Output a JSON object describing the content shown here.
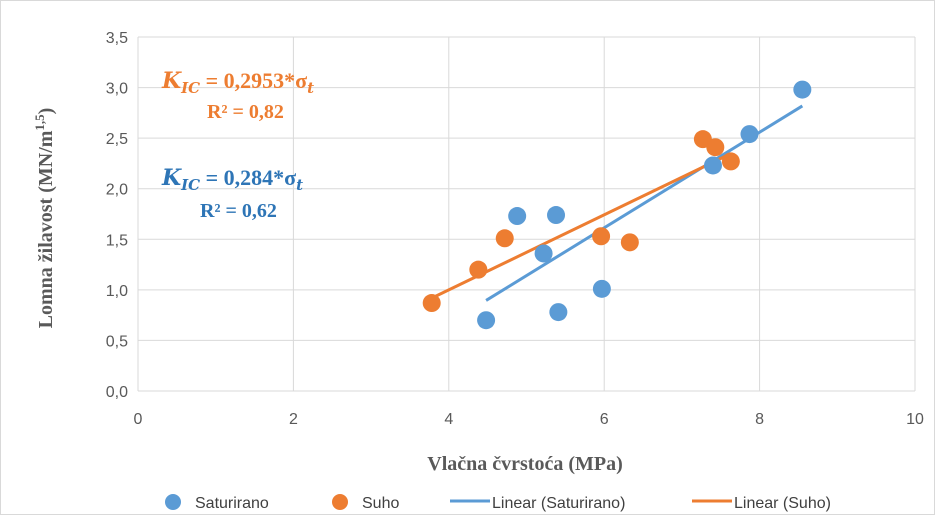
{
  "chart_data": {
    "type": "scatter",
    "xlabel": "Vlačna čvrstoća (MPa)",
    "ylabel_main": "Lomna žilavost (MN/m",
    "ylabel_sup": "1,5",
    "ylabel_end": ")",
    "xlim": [
      0,
      10
    ],
    "ylim": [
      0,
      3.5
    ],
    "x_ticks": [
      0,
      2,
      4,
      6,
      8,
      10
    ],
    "x_tick_labels": [
      "0",
      "2",
      "4",
      "6",
      "8",
      "10"
    ],
    "y_ticks": [
      0,
      0.5,
      1,
      1.5,
      2,
      2.5,
      3,
      3.5
    ],
    "y_tick_labels": [
      "0,0",
      "0,5",
      "1,0",
      "1,5",
      "2,0",
      "2,5",
      "3,0",
      "3,5"
    ],
    "grid": true,
    "legend_position": "bottom",
    "series": [
      {
        "name": "Saturirano",
        "color": "#5B9BD5",
        "points": [
          [
            4.48,
            0.7
          ],
          [
            4.88,
            1.73
          ],
          [
            5.22,
            1.36
          ],
          [
            5.38,
            1.74
          ],
          [
            5.41,
            0.78
          ],
          [
            5.97,
            1.01
          ],
          [
            7.4,
            2.23
          ],
          [
            7.87,
            2.54
          ],
          [
            8.55,
            2.98
          ]
        ]
      },
      {
        "name": "Suho",
        "color": "#ED7D31",
        "points": [
          [
            3.78,
            0.87
          ],
          [
            4.38,
            1.2
          ],
          [
            4.72,
            1.51
          ],
          [
            5.96,
            1.53
          ],
          [
            6.33,
            1.47
          ],
          [
            7.27,
            2.49
          ],
          [
            7.43,
            2.41
          ],
          [
            7.63,
            2.27
          ]
        ]
      }
    ],
    "trendlines": [
      {
        "name": "Linear (Saturirano)",
        "color": "#5B9BD5",
        "x": [
          4.48,
          8.55
        ]
      },
      {
        "name": "Linear (Suho)",
        "color": "#ED7D31",
        "x": [
          3.78,
          7.63
        ]
      }
    ],
    "annotations": [
      {
        "color": "#ED7D31",
        "equation_symbol": "K",
        "equation_subscript": "IC",
        "equation_rhs": " = 0,2953*σ",
        "equation_rhs_subscript": "t",
        "r2": "R² = 0,82"
      },
      {
        "color": "#2E75B6",
        "equation_symbol": "K",
        "equation_subscript": "IC",
        "equation_rhs": " = 0,284*σ",
        "equation_rhs_subscript": "t",
        "r2": "R² = 0,62"
      }
    ]
  }
}
